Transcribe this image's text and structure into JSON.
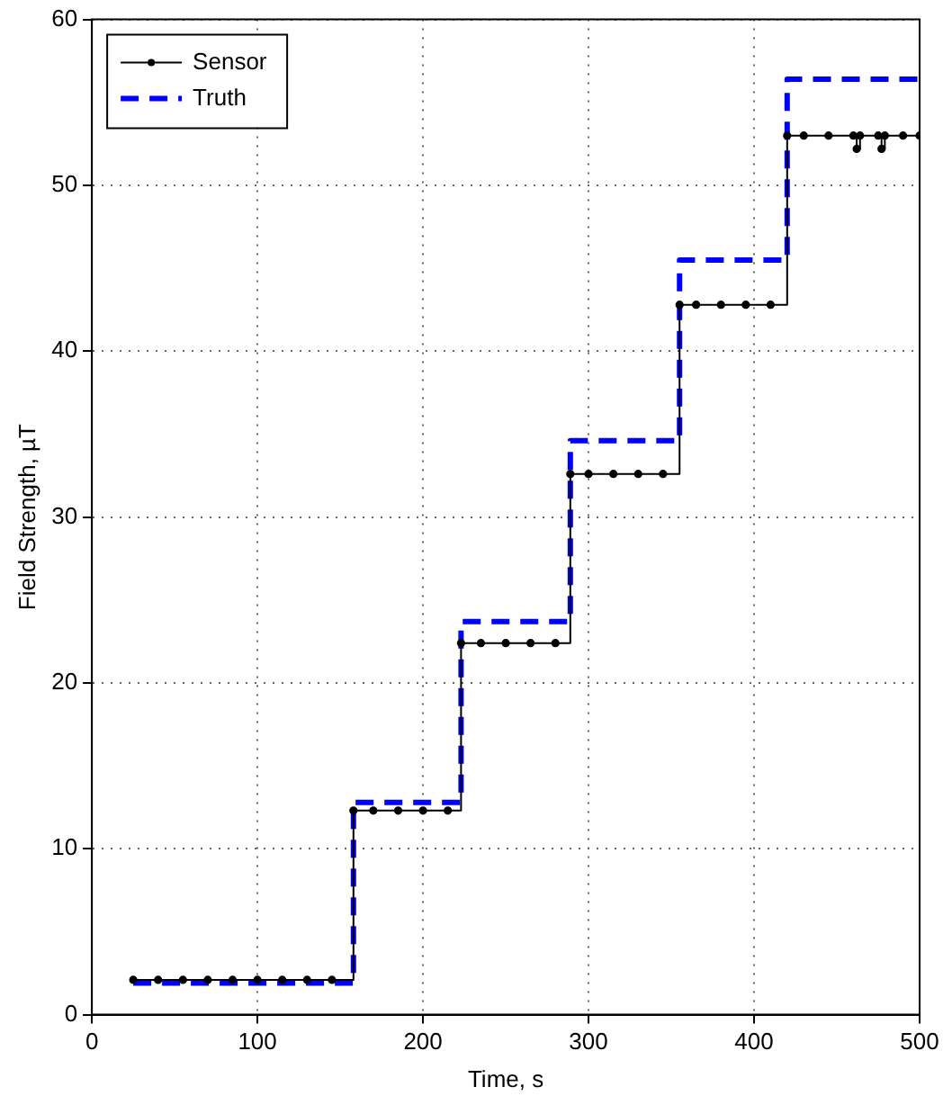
{
  "chart_data": {
    "type": "step",
    "xlabel": "Time, s",
    "ylabel": "Field Strength, µT",
    "xlim": [
      0,
      500
    ],
    "xticks": [
      0,
      100,
      200,
      300,
      400,
      500
    ],
    "ylim": [
      0,
      60
    ],
    "yticks": [
      0,
      10,
      20,
      30,
      40,
      50,
      60
    ],
    "grid": true,
    "legend": "top left",
    "series": [
      {
        "name": "Sensor",
        "color": "#000000",
        "marker": "circle",
        "line_style": "solid",
        "x": [
          25,
          40,
          55,
          70,
          85,
          100,
          115,
          130,
          145,
          158,
          170,
          185,
          200,
          215,
          223,
          235,
          250,
          265,
          280,
          289,
          300,
          315,
          330,
          345,
          355,
          365,
          380,
          395,
          410,
          420,
          430,
          445,
          460,
          462,
          464,
          475,
          477,
          479,
          490,
          500
        ],
        "values": [
          2.1,
          2.1,
          2.1,
          2.1,
          2.1,
          2.1,
          2.1,
          2.1,
          2.1,
          12.3,
          12.3,
          12.3,
          12.3,
          12.3,
          22.4,
          22.4,
          22.4,
          22.4,
          22.4,
          32.6,
          32.6,
          32.6,
          32.6,
          32.6,
          42.8,
          42.8,
          42.8,
          42.8,
          42.8,
          53.0,
          53.0,
          53.0,
          53.0,
          52.2,
          53.0,
          53.0,
          52.2,
          53.0,
          53.0,
          53.0
        ]
      },
      {
        "name": "Truth",
        "color": "#0000ff",
        "marker": "none",
        "line_style": "dashed",
        "x": [
          25,
          158,
          223,
          289,
          355,
          420,
          500
        ],
        "values": [
          1.9,
          12.8,
          23.7,
          34.6,
          45.5,
          56.4,
          56.4
        ]
      }
    ]
  }
}
